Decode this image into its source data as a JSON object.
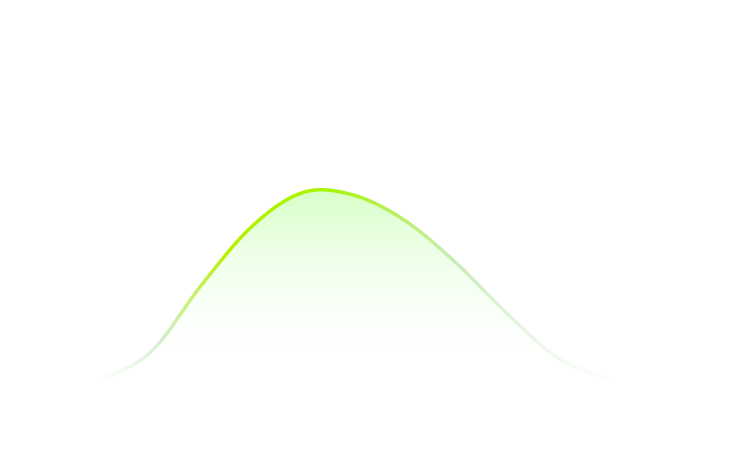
{
  "chart_data": {
    "type": "area",
    "title": "",
    "xlabel": "",
    "ylabel": "",
    "grid": false,
    "legend": "none",
    "xlim": [
      0,
      10
    ],
    "ylim": [
      0,
      1.0
    ],
    "series": [
      {
        "color": "#a6f500",
        "fill_color": "#d2ffc4",
        "x": [
          0,
          1,
          2,
          3,
          4,
          5,
          6,
          7,
          8,
          9,
          10
        ],
        "y": [
          0.0,
          0.1,
          0.34,
          0.55,
          0.67,
          0.66,
          0.57,
          0.42,
          0.24,
          0.08,
          0.0
        ]
      }
    ]
  }
}
